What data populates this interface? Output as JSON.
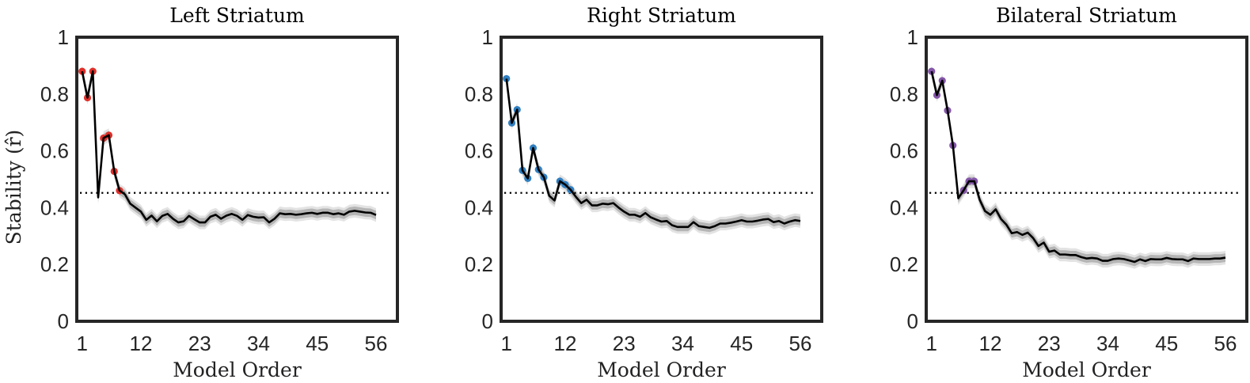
{
  "chart_data": [
    {
      "type": "line",
      "title": "Left Striatum",
      "xlabel": "Model Order",
      "ylabel": "Stability (r̂)",
      "xlim": [
        0,
        60
      ],
      "ylim": [
        0,
        1
      ],
      "xticks": [
        "1",
        "12",
        "23",
        "34",
        "45",
        "56"
      ],
      "yticks": [
        "0",
        "0.2",
        "0.4",
        "0.6",
        "0.8",
        "1"
      ],
      "threshold": 0.452,
      "band_halfwidth": 0.015,
      "highlight_color": "#e0302a",
      "highlighted_orders": [
        1,
        2,
        3,
        5,
        6,
        7,
        8
      ],
      "x_start": 1,
      "values": [
        0.88,
        0.787,
        0.88,
        0.436,
        0.645,
        0.655,
        0.528,
        0.46,
        0.447,
        0.414,
        0.4,
        0.386,
        0.357,
        0.372,
        0.352,
        0.371,
        0.378,
        0.361,
        0.348,
        0.352,
        0.371,
        0.359,
        0.348,
        0.348,
        0.368,
        0.375,
        0.361,
        0.372,
        0.378,
        0.371,
        0.357,
        0.374,
        0.368,
        0.365,
        0.366,
        0.348,
        0.361,
        0.38,
        0.377,
        0.378,
        0.375,
        0.377,
        0.38,
        0.382,
        0.378,
        0.382,
        0.382,
        0.377,
        0.38,
        0.375,
        0.386,
        0.389,
        0.386,
        0.383,
        0.382,
        0.374
      ]
    },
    {
      "type": "line",
      "title": "Right Striatum",
      "xlabel": "Model Order",
      "ylabel": "",
      "xlim": [
        0,
        60
      ],
      "ylim": [
        0,
        1
      ],
      "xticks": [
        "1",
        "12",
        "23",
        "34",
        "45",
        "56"
      ],
      "yticks": [
        "0",
        "0.2",
        "0.4",
        "0.6",
        "0.8",
        "1"
      ],
      "threshold": 0.452,
      "band_halfwidth": 0.015,
      "highlight_color": "#2f7fc1",
      "highlighted_orders": [
        1,
        2,
        3,
        4,
        5,
        6,
        7,
        8,
        11,
        12,
        13
      ],
      "x_start": 1,
      "values": [
        0.854,
        0.698,
        0.745,
        0.531,
        0.503,
        0.61,
        0.534,
        0.507,
        0.442,
        0.425,
        0.493,
        0.481,
        0.463,
        0.438,
        0.416,
        0.428,
        0.408,
        0.408,
        0.414,
        0.412,
        0.416,
        0.4,
        0.386,
        0.375,
        0.375,
        0.368,
        0.381,
        0.366,
        0.358,
        0.351,
        0.353,
        0.338,
        0.332,
        0.332,
        0.332,
        0.349,
        0.335,
        0.332,
        0.329,
        0.335,
        0.344,
        0.344,
        0.347,
        0.351,
        0.356,
        0.351,
        0.351,
        0.354,
        0.358,
        0.36,
        0.349,
        0.353,
        0.344,
        0.351,
        0.356,
        0.353
      ]
    },
    {
      "type": "line",
      "title": "Bilateral Striatum",
      "xlabel": "Model Order",
      "ylabel": "",
      "xlim": [
        0,
        60
      ],
      "ylim": [
        0,
        1
      ],
      "xticks": [
        "1",
        "12",
        "23",
        "34",
        "45",
        "56"
      ],
      "yticks": [
        "0",
        "0.2",
        "0.4",
        "0.6",
        "0.8",
        "1"
      ],
      "threshold": 0.452,
      "band_halfwidth": 0.015,
      "highlight_color": "#8456a8",
      "highlighted_orders": [
        1,
        2,
        3,
        4,
        5,
        7,
        8,
        9
      ],
      "x_start": 1,
      "values": [
        0.88,
        0.796,
        0.847,
        0.742,
        0.619,
        0.433,
        0.461,
        0.493,
        0.493,
        0.428,
        0.388,
        0.375,
        0.394,
        0.36,
        0.34,
        0.31,
        0.314,
        0.304,
        0.312,
        0.293,
        0.265,
        0.277,
        0.245,
        0.249,
        0.235,
        0.235,
        0.233,
        0.233,
        0.226,
        0.221,
        0.223,
        0.221,
        0.213,
        0.213,
        0.219,
        0.221,
        0.219,
        0.214,
        0.209,
        0.218,
        0.212,
        0.219,
        0.218,
        0.218,
        0.223,
        0.219,
        0.218,
        0.218,
        0.212,
        0.221,
        0.219,
        0.219,
        0.219,
        0.221,
        0.221,
        0.224
      ]
    }
  ]
}
